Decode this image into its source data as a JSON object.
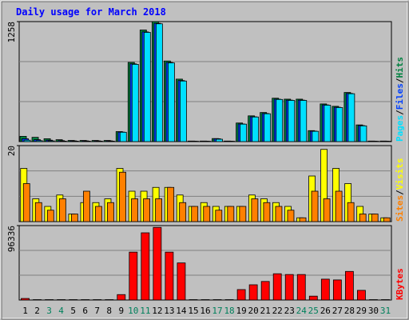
{
  "title": "Daily usage for March 2018",
  "legend_separator": "/",
  "chart_data": [
    {
      "type": "bar",
      "ylim": [
        0,
        1258
      ],
      "yticks": [
        1258
      ],
      "series": [
        {
          "name": "Hits",
          "color": "#008040",
          "values": [
            55,
            45,
            30,
            20,
            12,
            12,
            12,
            12,
            105,
            830,
            1170,
            1258,
            845,
            655,
            6,
            6,
            32,
            6,
            195,
            270,
            305,
            455,
            445,
            445,
            115,
            395,
            370,
            515,
            175,
            6,
            6
          ]
        },
        {
          "name": "Files",
          "color": "#0040ff",
          "values": [
            30,
            20,
            15,
            10,
            8,
            8,
            8,
            8,
            100,
            815,
            1150,
            1240,
            830,
            640,
            5,
            5,
            30,
            5,
            185,
            260,
            295,
            445,
            435,
            435,
            110,
            385,
            360,
            505,
            168,
            5,
            5
          ]
        },
        {
          "name": "Pages",
          "color": "#00e0ff",
          "values": [
            15,
            10,
            8,
            5,
            5,
            5,
            5,
            5,
            98,
            810,
            1145,
            1235,
            825,
            635,
            4,
            4,
            25,
            4,
            183,
            258,
            292,
            442,
            432,
            432,
            108,
            382,
            357,
            502,
            165,
            4,
            4
          ]
        }
      ]
    },
    {
      "type": "bar",
      "ylim": [
        0,
        20
      ],
      "yticks": [
        20
      ],
      "series": [
        {
          "name": "Visits",
          "color": "#ffff00",
          "values": [
            14,
            6,
            4,
            7,
            2,
            5,
            5,
            6,
            14,
            8,
            8,
            9,
            9,
            7,
            4,
            5,
            4,
            4,
            4,
            7,
            6,
            5,
            4,
            1,
            12,
            19,
            14,
            10,
            4,
            2,
            1
          ]
        },
        {
          "name": "Sites",
          "color": "#ff8000",
          "values": [
            10,
            5,
            3,
            6,
            2,
            8,
            4,
            5,
            13,
            6,
            6,
            6,
            9,
            5,
            4,
            4,
            3,
            4,
            4,
            6,
            5,
            4,
            3,
            1,
            8,
            6,
            8,
            5,
            2,
            2,
            1
          ]
        }
      ]
    },
    {
      "type": "bar",
      "ylim": [
        0,
        96336
      ],
      "yticks": [
        96336
      ],
      "categories": [
        "1",
        "2",
        "3",
        "4",
        "5",
        "6",
        "7",
        "8",
        "9",
        "10",
        "11",
        "12",
        "13",
        "14",
        "15",
        "16",
        "17",
        "18",
        "19",
        "20",
        "21",
        "22",
        "23",
        "24",
        "25",
        "26",
        "27",
        "28",
        "29",
        "30",
        "31"
      ],
      "label_colors": [
        "#000000",
        "#000000",
        "#00805c",
        "#00805c",
        "#000000",
        "#000000",
        "#000000",
        "#000000",
        "#000000",
        "#00805c",
        "#00805c",
        "#000000",
        "#000000",
        "#000000",
        "#000000",
        "#000000",
        "#00805c",
        "#00805c",
        "#000000",
        "#000000",
        "#000000",
        "#000000",
        "#000000",
        "#00805c",
        "#00805c",
        "#000000",
        "#000000",
        "#000000",
        "#000000",
        "#000000",
        "#00805c"
      ],
      "series": [
        {
          "name": "KBytes",
          "color": "#ff0000",
          "values": [
            2000,
            500,
            500,
            500,
            500,
            500,
            500,
            500,
            7000,
            62000,
            87000,
            94000,
            62000,
            48000,
            500,
            500,
            500,
            500,
            13500,
            19700,
            24000,
            34000,
            33000,
            33000,
            5000,
            27000,
            26000,
            37000,
            12500,
            500,
            500
          ]
        }
      ]
    }
  ]
}
